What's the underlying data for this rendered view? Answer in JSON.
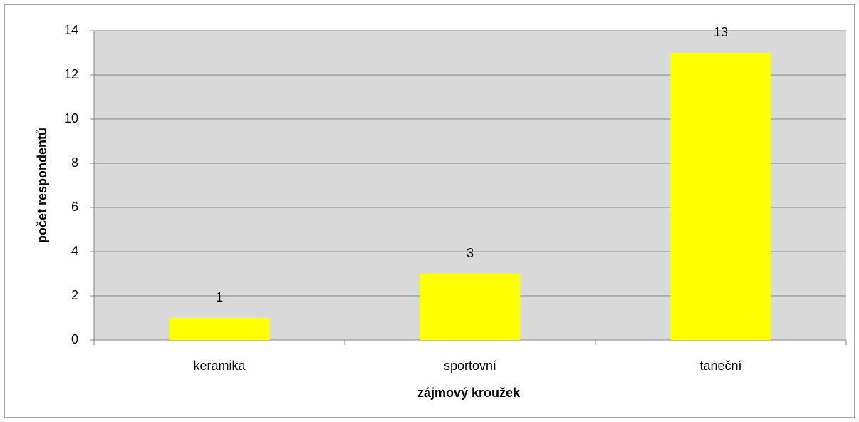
{
  "chart_data": {
    "type": "bar",
    "categories": [
      "keramika",
      "sportovní",
      "taneční"
    ],
    "values": [
      1,
      3,
      13
    ],
    "color": "#ffff00",
    "xlabel": "zájmový kroužek",
    "ylabel": "počet respondentů",
    "ylim": [
      0,
      14
    ],
    "yticks": [
      0,
      2,
      4,
      6,
      8,
      10,
      12,
      14
    ],
    "grid": true,
    "plot_background": "#d9d9d9"
  }
}
